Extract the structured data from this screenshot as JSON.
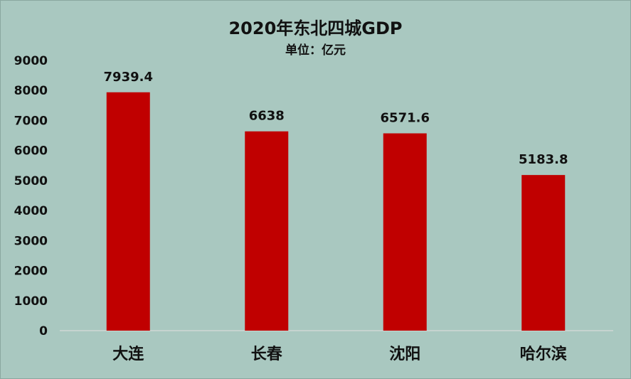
{
  "chart_data": {
    "type": "bar",
    "title": "2020年东北四城GDP",
    "subtitle": "单位：亿元",
    "categories": [
      "大连",
      "长春",
      "沈阳",
      "哈尔滨"
    ],
    "values": [
      7939.4,
      6638,
      6571.6,
      5183.8
    ],
    "data_labels": [
      "7939.4",
      "6638",
      "6571.6",
      "5183.8"
    ],
    "yticks": [
      0,
      1000,
      2000,
      3000,
      4000,
      5000,
      6000,
      7000,
      8000,
      9000
    ],
    "ylim": [
      0,
      9000
    ],
    "grid": false,
    "legend": "none",
    "bar_color": "#c00000",
    "background_color": "#a9c8c0"
  }
}
